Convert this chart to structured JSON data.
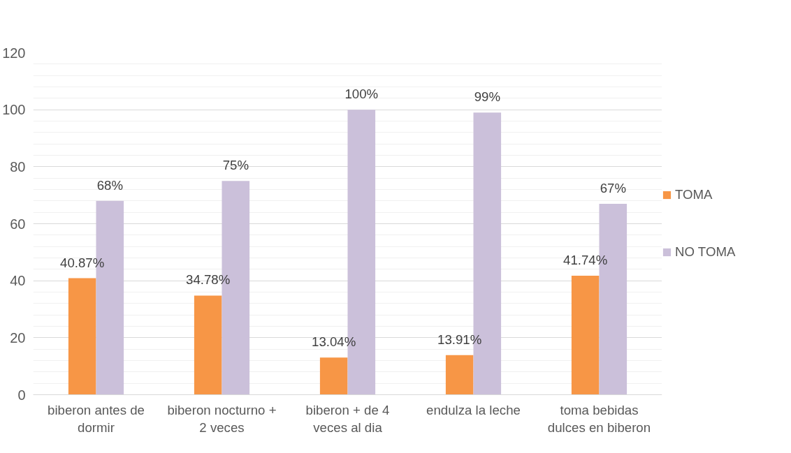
{
  "chart_data": {
    "type": "bar",
    "categories": [
      "biberon antes de dormir",
      "biberon nocturno + 2 veces",
      "biberon + de 4 veces al dia",
      "endulza la leche",
      "toma bebidas dulces en biberon"
    ],
    "series": [
      {
        "name": "TOMA",
        "color": "#f79646",
        "values": [
          40.87,
          34.78,
          13.04,
          13.91,
          41.74
        ],
        "value_labels": [
          "40.87%",
          "34.78%",
          "13.04%",
          "13.91%",
          "41.74%"
        ]
      },
      {
        "name": "NO TOMA",
        "color": "#cbc0da",
        "values": [
          68,
          75,
          100,
          99,
          67
        ],
        "value_labels": [
          "68%",
          "75%",
          "100%",
          "99%",
          "67%"
        ]
      }
    ],
    "ylim": [
      0,
      120
    ],
    "yticks": [
      0,
      {
        "value": 4,
        "label": null
      },
      {
        "value": 8,
        "label": null
      },
      {
        "value": 12,
        "label": null
      },
      {
        "value": 16,
        "label": null
      },
      20,
      {
        "value": 24,
        "label": null
      },
      {
        "value": 28,
        "label": null
      },
      {
        "value": 32,
        "label": null
      },
      {
        "value": 36,
        "label": null
      },
      40,
      {
        "value": 44,
        "label": null
      },
      {
        "value": 48,
        "label": null
      },
      {
        "value": 52,
        "label": null
      },
      {
        "value": 56,
        "label": null
      },
      60,
      {
        "value": 64,
        "label": null
      },
      {
        "value": 68,
        "label": null
      },
      {
        "value": 72,
        "label": null
      },
      {
        "value": 76,
        "label": null
      },
      80,
      {
        "value": 84,
        "label": null
      },
      {
        "value": 88,
        "label": null
      },
      {
        "value": 92,
        "label": null
      },
      {
        "value": 96,
        "label": null
      },
      100,
      {
        "value": 104,
        "label": null
      },
      {
        "value": 108,
        "label": null
      },
      {
        "value": 112,
        "label": null
      },
      {
        "value": 116,
        "label": null
      },
      120
    ],
    "grid": "y",
    "legend": "right"
  }
}
